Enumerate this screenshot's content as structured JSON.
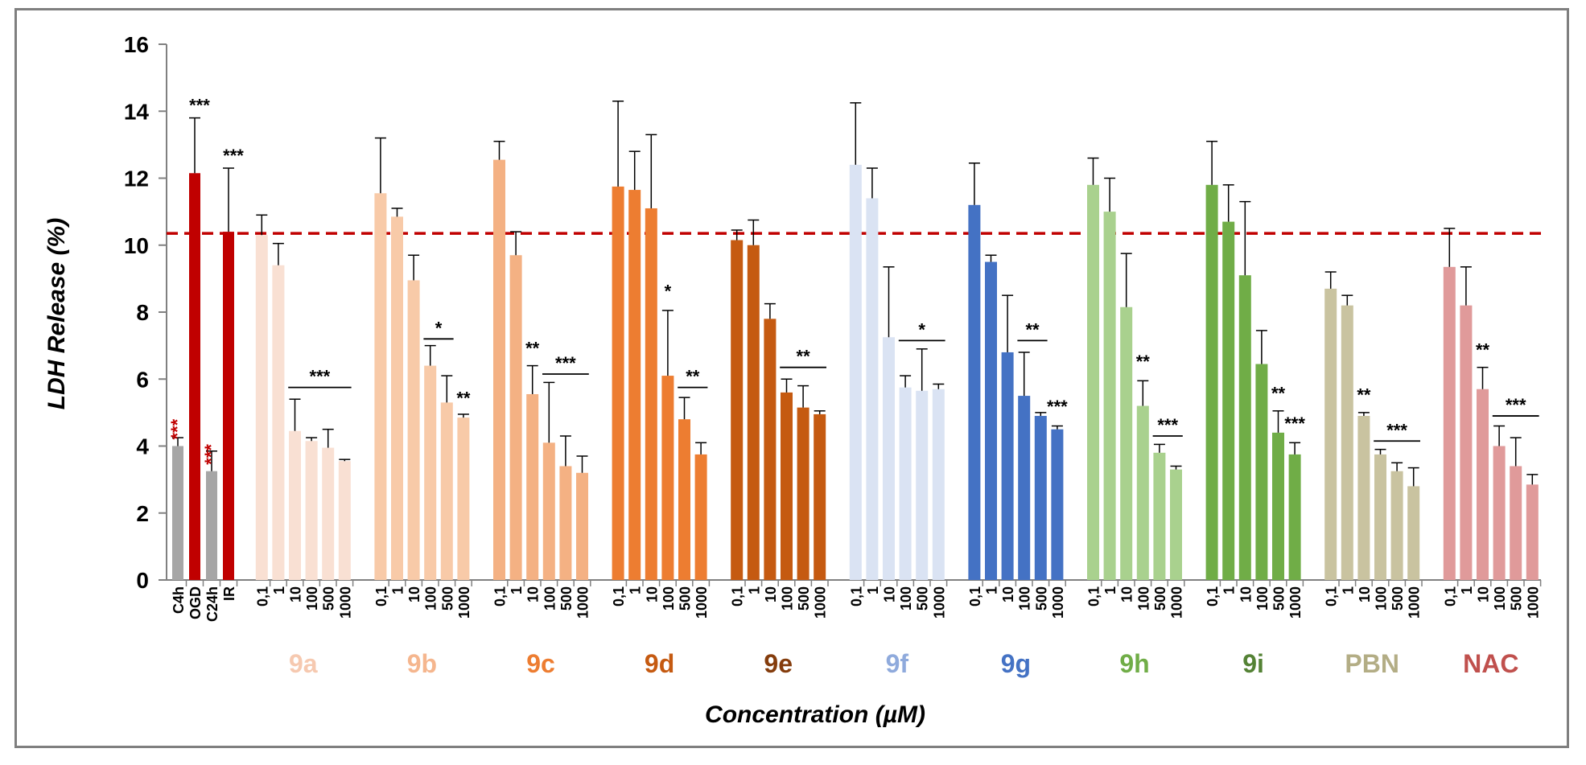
{
  "chart_data": {
    "type": "bar",
    "title": "",
    "ylabel": "LDH Release (%)",
    "xlabel": "Concentration (µM)",
    "ylim": [
      0,
      16
    ],
    "yticks": [
      0,
      2,
      4,
      6,
      8,
      10,
      12,
      14,
      16
    ],
    "reference_line": 10.35,
    "controls": [
      {
        "label": "C4h",
        "value": 4.0,
        "error": 0.25,
        "color": "#a6a6a6",
        "sig": "***",
        "sig_color": "#c00000",
        "sig_rotated": true
      },
      {
        "label": "OGD",
        "value": 12.15,
        "error": 1.65,
        "color": "#c00000",
        "sig": "***",
        "sig_color": "#000000",
        "sig_rotated": false
      },
      {
        "label": "C24h",
        "value": 3.25,
        "error": 0.6,
        "color": "#a6a6a6",
        "sig": "***",
        "sig_color": "#c00000",
        "sig_rotated": true
      },
      {
        "label": "IR",
        "value": 10.4,
        "error": 1.9,
        "color": "#c00000",
        "sig": "***",
        "sig_color": "#000000",
        "sig_rotated": false
      }
    ],
    "concentrations": [
      "0,1",
      "1",
      "10",
      "100",
      "500",
      "1000"
    ],
    "groups": [
      {
        "name": "9a",
        "color": "#f9e0d3",
        "label_color": "#f6c9b0",
        "values": [
          10.3,
          9.4,
          4.45,
          4.15,
          3.95,
          3.55
        ],
        "errors": [
          0.6,
          0.65,
          0.95,
          0.1,
          0.55,
          0.05
        ],
        "annotations": [
          {
            "text": "***",
            "from": 2,
            "to": 5,
            "y": 5.75
          }
        ]
      },
      {
        "name": "9b",
        "color": "#f8caa8",
        "label_color": "#f5b68e",
        "values": [
          11.55,
          10.85,
          8.95,
          6.4,
          5.3,
          4.85
        ],
        "errors": [
          1.65,
          0.25,
          0.75,
          0.6,
          0.8,
          0.1
        ],
        "annotations": [
          {
            "text": "*",
            "from": 3,
            "to": 4,
            "y": 7.2
          },
          {
            "text": "**",
            "from": 5,
            "to": 5,
            "y": 5.1,
            "single": true
          }
        ]
      },
      {
        "name": "9c",
        "color": "#f4b183",
        "label_color": "#ed7d31",
        "values": [
          12.55,
          9.7,
          5.55,
          4.1,
          3.4,
          3.2
        ],
        "errors": [
          0.55,
          0.7,
          0.85,
          1.8,
          0.9,
          0.5
        ],
        "annotations": [
          {
            "text": "**",
            "from": 2,
            "to": 2,
            "y": 6.6,
            "single": true
          },
          {
            "text": "***",
            "from": 3,
            "to": 5,
            "y": 6.15
          }
        ]
      },
      {
        "name": "9d",
        "color": "#ed7d31",
        "label_color": "#c55a11",
        "values": [
          11.75,
          11.65,
          11.1,
          6.1,
          4.8,
          3.75
        ],
        "errors": [
          2.55,
          1.15,
          2.2,
          1.95,
          0.65,
          0.35
        ],
        "annotations": [
          {
            "text": "*",
            "from": 3,
            "to": 3,
            "y": 8.3,
            "single": true
          },
          {
            "text": "**",
            "from": 4,
            "to": 5,
            "y": 5.75
          }
        ]
      },
      {
        "name": "9e",
        "color": "#c55a11",
        "label_color": "#843c0c",
        "values": [
          10.15,
          10.0,
          7.8,
          5.6,
          5.15,
          4.95
        ],
        "errors": [
          0.3,
          0.75,
          0.45,
          0.4,
          0.65,
          0.1
        ],
        "annotations": [
          {
            "text": "**",
            "from": 3,
            "to": 5,
            "y": 6.35
          }
        ]
      },
      {
        "name": "9f",
        "color": "#dae3f3",
        "label_color": "#8faadc",
        "values": [
          12.4,
          11.4,
          7.25,
          5.75,
          5.65,
          5.7
        ],
        "errors": [
          1.85,
          0.9,
          2.1,
          0.35,
          1.25,
          0.15
        ],
        "annotations": [
          {
            "text": "*",
            "from": 3,
            "to": 5,
            "y": 7.15
          }
        ]
      },
      {
        "name": "9g",
        "color": "#4472c4",
        "label_color": "#4472c4",
        "values": [
          11.2,
          9.5,
          6.8,
          5.5,
          4.9,
          4.5
        ],
        "errors": [
          1.25,
          0.2,
          1.7,
          1.3,
          0.1,
          0.1
        ],
        "annotations": [
          {
            "text": "**",
            "from": 3,
            "to": 4,
            "y": 7.15
          },
          {
            "text": "***",
            "from": 5,
            "to": 5,
            "y": 4.85,
            "single": true
          }
        ]
      },
      {
        "name": "9h",
        "color": "#a9d18e",
        "label_color": "#70ad47",
        "values": [
          11.8,
          11.0,
          8.15,
          5.2,
          3.8,
          3.3
        ],
        "errors": [
          0.8,
          1.0,
          1.6,
          0.75,
          0.25,
          0.1
        ],
        "annotations": [
          {
            "text": "**",
            "from": 3,
            "to": 3,
            "y": 6.2,
            "single": true
          },
          {
            "text": "***",
            "from": 4,
            "to": 5,
            "y": 4.3
          }
        ]
      },
      {
        "name": "9i",
        "color": "#70ad47",
        "label_color": "#548235",
        "values": [
          11.8,
          10.7,
          9.1,
          6.45,
          4.4,
          3.75
        ],
        "errors": [
          1.3,
          1.1,
          2.2,
          1.0,
          0.65,
          0.35
        ],
        "annotations": [
          {
            "text": "**",
            "from": 4,
            "to": 4,
            "y": 5.25,
            "single": true
          },
          {
            "text": "***",
            "from": 5,
            "to": 5,
            "y": 4.35,
            "single": true
          }
        ]
      },
      {
        "name": "PBN",
        "color": "#c9c3a0",
        "label_color": "#b3ad85",
        "values": [
          8.7,
          8.2,
          4.9,
          3.75,
          3.25,
          2.8
        ],
        "errors": [
          0.5,
          0.3,
          0.1,
          0.15,
          0.25,
          0.55
        ],
        "annotations": [
          {
            "text": "**",
            "from": 2,
            "to": 2,
            "y": 5.2,
            "single": true
          },
          {
            "text": "***",
            "from": 3,
            "to": 5,
            "y": 4.15
          }
        ]
      },
      {
        "name": "NAC",
        "color": "#e09a9a",
        "label_color": "#c0504d",
        "values": [
          9.35,
          8.2,
          5.7,
          4.0,
          3.4,
          2.85
        ],
        "errors": [
          1.15,
          1.15,
          0.65,
          0.6,
          0.85,
          0.3
        ],
        "annotations": [
          {
            "text": "**",
            "from": 2,
            "to": 2,
            "y": 6.55,
            "single": true
          },
          {
            "text": "***",
            "from": 3,
            "to": 5,
            "y": 4.9
          }
        ]
      }
    ]
  }
}
